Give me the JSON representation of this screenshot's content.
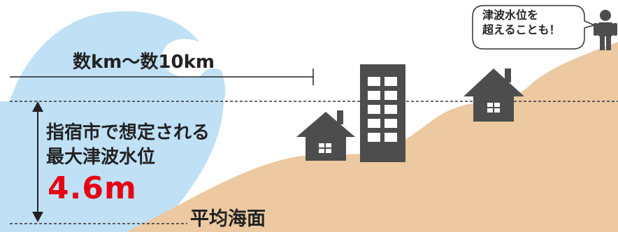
{
  "range_label": "数km〜数10km",
  "description": {
    "line1": "指宿市で想定される",
    "line2": "最大津波水位"
  },
  "max_tsunami_height": "4.6m",
  "sea_level_label": "平均海面",
  "speech_bubble": {
    "line1": "津波水位を",
    "line2": "超えることも！"
  },
  "colors": {
    "water": "#bfe0f5",
    "land": "#ecc9a0",
    "building": "#4d4d4d",
    "highlight": "#e60012",
    "text": "#222222"
  },
  "icons": [
    "house-icon",
    "building-icon",
    "person-icon",
    "arrow-icon"
  ]
}
